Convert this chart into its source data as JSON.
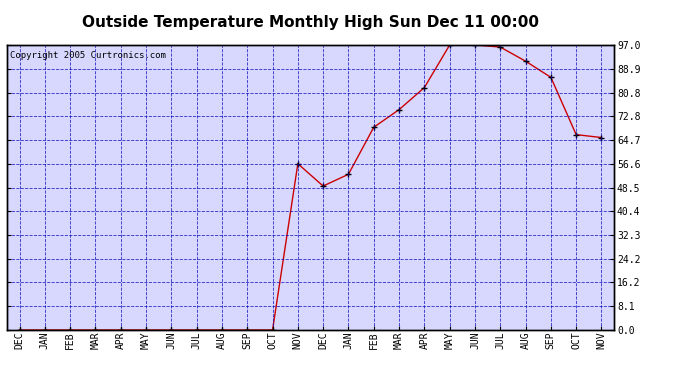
{
  "title": "Outside Temperature Monthly High Sun Dec 11 00:00",
  "copyright": "Copyright 2005 Curtronics.com",
  "x_labels": [
    "DEC",
    "JAN",
    "FEB",
    "MAR",
    "APR",
    "MAY",
    "JUN",
    "JUL",
    "AUG",
    "SEP",
    "OCT",
    "NOV",
    "DEC",
    "JAN",
    "FEB",
    "MAR",
    "APR",
    "MAY",
    "JUN",
    "JUL",
    "AUG",
    "SEP",
    "OCT",
    "NOV"
  ],
  "y_values": [
    0.0,
    0.0,
    0.0,
    0.0,
    0.0,
    0.0,
    0.0,
    0.0,
    0.0,
    0.0,
    0.0,
    56.6,
    49.0,
    53.0,
    69.0,
    75.0,
    82.5,
    97.0,
    97.0,
    96.3,
    91.5,
    86.0,
    66.5,
    65.5
  ],
  "ylim": [
    0.0,
    97.0
  ],
  "yticks": [
    0.0,
    8.1,
    16.2,
    24.2,
    32.3,
    40.4,
    48.5,
    56.6,
    64.7,
    72.8,
    80.8,
    88.9,
    97.0
  ],
  "line_color": "#cc0000",
  "marker_color": "#000000",
  "bg_color": "#d8d8ff",
  "outer_bg": "#ffffff",
  "grid_color": "#0000bb",
  "title_fontsize": 11,
  "tick_fontsize": 7,
  "copyright_fontsize": 6.5
}
